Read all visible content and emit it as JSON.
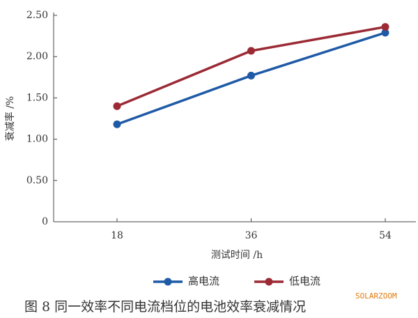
{
  "chart_data": {
    "type": "line",
    "y_label": "衰减率 /%",
    "x_label": "测试时间 /h",
    "caption": "图 8  同一效率不同电流档位的电池效率衰减情况",
    "watermark": "SOLARZOOM",
    "categories": [
      "18",
      "36",
      "54"
    ],
    "series": [
      {
        "name": "高电流",
        "color": "#1f5aa6",
        "values": [
          1.18,
          1.77,
          2.29
        ]
      },
      {
        "name": "低电流",
        "color": "#9b2a35",
        "values": [
          1.4,
          2.07,
          2.36
        ]
      }
    ],
    "ylim": [
      0,
      2.5
    ],
    "yticks": [
      0,
      {
        "value": 0.5,
        "label": "0.50"
      },
      {
        "value": 1,
        "label": "1.00"
      },
      {
        "value": 1.5,
        "label": "1.50"
      },
      {
        "value": 2,
        "label": "2.00"
      },
      {
        "value": 2.5,
        "label": "2.50"
      }
    ],
    "legend": "bottom"
  }
}
